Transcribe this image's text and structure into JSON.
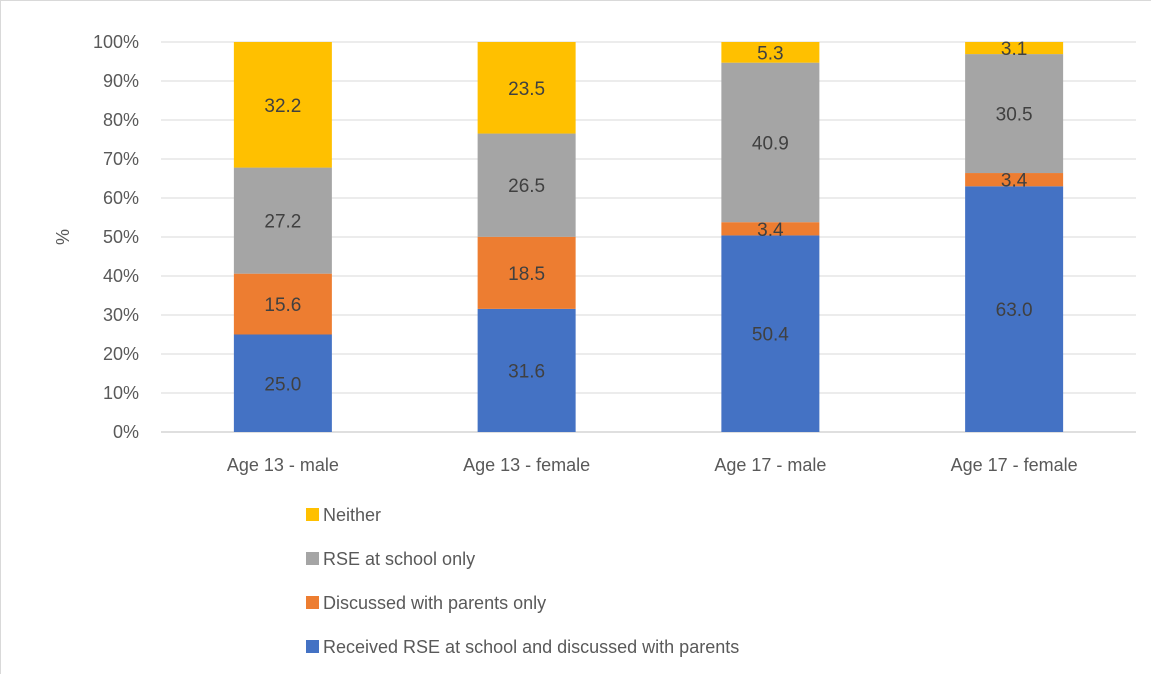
{
  "chart_data": {
    "type": "bar",
    "stacked": true,
    "percent_stacked": true,
    "categories": [
      "Age 13 - male",
      "Age 13 - female",
      "Age 17 - male",
      "Age 17 - female"
    ],
    "series": [
      {
        "name": "Received RSE at school and discussed with parents",
        "color": "#4472C4",
        "values": [
          25.0,
          31.6,
          50.4,
          63.0
        ],
        "labels": [
          "25.0",
          "31.6",
          "50.4",
          "63.0"
        ]
      },
      {
        "name": "Discussed with parents only",
        "color": "#ED7D31",
        "values": [
          15.6,
          18.5,
          3.4,
          3.4
        ],
        "labels": [
          "15.6",
          "18.5",
          "3.4",
          "3.4"
        ]
      },
      {
        "name": "RSE at school only",
        "color": "#A5A5A5",
        "values": [
          27.2,
          26.5,
          40.9,
          30.5
        ],
        "labels": [
          "27.2",
          "26.5",
          "40.9",
          "30.5"
        ]
      },
      {
        "name": "Neither",
        "color": "#FFC000",
        "values": [
          32.2,
          23.5,
          5.3,
          3.1
        ],
        "labels": [
          "32.2",
          "23.5",
          "5.3",
          "3.1"
        ]
      }
    ],
    "ylabel": "%",
    "ylim": [
      0,
      100
    ],
    "yticks": [
      "0%",
      "10%",
      "20%",
      "30%",
      "40%",
      "50%",
      "60%",
      "70%",
      "80%",
      "90%",
      "100%"
    ],
    "grid": true,
    "legend_position": "bottom",
    "legend_order": [
      "Neither",
      "RSE at school only",
      "Discussed with parents only",
      "Received RSE at school and discussed with parents"
    ]
  }
}
